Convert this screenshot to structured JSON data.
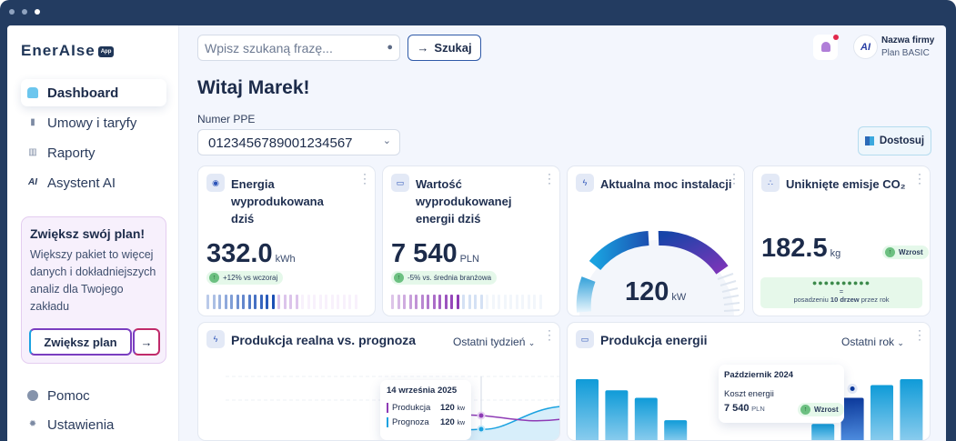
{
  "sidebar": {
    "logo": "EnerAIse",
    "logo_badge": "App",
    "items": [
      {
        "label": "Dashboard",
        "icon": "home-icon",
        "active": true
      },
      {
        "label": "Umowy i taryfy",
        "icon": "document-icon"
      },
      {
        "label": "Raporty",
        "icon": "bar-chart-icon"
      },
      {
        "label": "Asystent AI",
        "icon": "ai-icon"
      }
    ],
    "promo": {
      "title": "Zwiększ swój plan!",
      "text": "Większy pakiet to więcej danych i dokładniejszych analiz dla Twojego zakładu",
      "button": "Zwiększ plan",
      "arrow": "→"
    },
    "bottom": [
      {
        "label": "Pomoc",
        "icon": "help-icon"
      },
      {
        "label": "Ustawienia",
        "icon": "gear-icon"
      }
    ]
  },
  "header": {
    "search_placeholder": "Wpisz szukaną frazę...",
    "search_button": "Szukaj",
    "search_arrow": "→",
    "company": "Nazwa firmy",
    "plan": "Plan BASIC",
    "avatar": "AI"
  },
  "main": {
    "greeting": "Witaj Marek!",
    "ppe_label": "Numer PPE",
    "ppe_value": "0123456789001234567",
    "customize": "Dostosuj"
  },
  "cards": {
    "energy": {
      "title": "Energia wyprodukowana dziś",
      "value": "332.0",
      "unit": "kWh",
      "trend": "+12% vs wczoraj"
    },
    "value": {
      "title": "Wartość wyprodukowanej energii dziś",
      "value": "7 540",
      "unit": "PLN",
      "trend": "-5% vs. średnia branżowa"
    },
    "power": {
      "title": "Aktualna moc instalacji",
      "value": "120",
      "unit": "kW"
    },
    "co2": {
      "title": "Uniknięte emisje CO₂",
      "value": "182.5",
      "unit": "kg",
      "badge": "Wzrost",
      "eq": "=",
      "trees_pre": "posadzeniu",
      "trees_count": "10 drzew",
      "trees_post": "przez rok"
    }
  },
  "forecast": {
    "title": "Produkcja realna vs. prognoza",
    "range": "Ostatni tydzień",
    "tooltip": {
      "date": "14 września 2025",
      "rows": [
        {
          "label": "Produkcja",
          "value": "120",
          "unit": "kw",
          "color": "#8e3bb5"
        },
        {
          "label": "Prognoza",
          "value": "120",
          "unit": "kw",
          "color": "#1aa2e0"
        }
      ]
    }
  },
  "production": {
    "title": "Produkcja energii",
    "range": "Ostatni rok",
    "tooltip": {
      "month": "Październik 2024",
      "label": "Koszt energii",
      "value": "7 540",
      "unit": "PLN",
      "badge": "Wzrost"
    }
  },
  "chart_data": {
    "type": "bar",
    "values": [
      100,
      85,
      75,
      45,
      null,
      null,
      null,
      null,
      40,
      75,
      92,
      100
    ],
    "highlight_index": 9
  }
}
